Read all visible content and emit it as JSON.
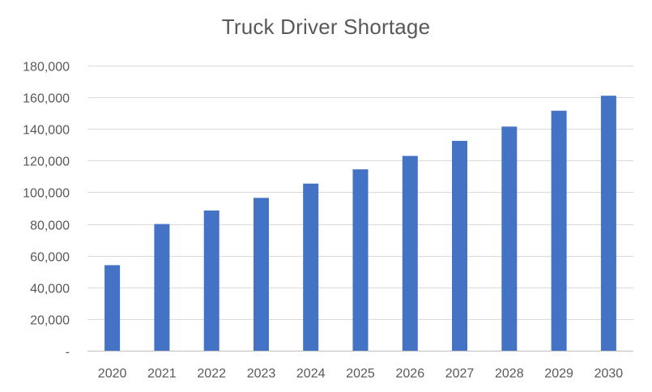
{
  "chart_data": {
    "type": "bar",
    "title": "Truck Driver Shortage",
    "xlabel": "",
    "ylabel": "",
    "categories": [
      "2020",
      "2021",
      "2022",
      "2023",
      "2024",
      "2025",
      "2026",
      "2027",
      "2028",
      "2029",
      "2030"
    ],
    "values": [
      54000,
      80000,
      88500,
      96500,
      105500,
      114500,
      123000,
      132500,
      141500,
      151500,
      161000
    ],
    "ylim": [
      0,
      180000
    ],
    "y_ticks": [
      0,
      20000,
      40000,
      60000,
      80000,
      100000,
      120000,
      140000,
      160000,
      180000
    ],
    "y_tick_labels": [
      "-",
      "20,000",
      "40,000",
      "60,000",
      "80,000",
      "100,000",
      "120,000",
      "140,000",
      "160,000",
      "180,000"
    ],
    "bar_color": "#4472c4",
    "grid": true,
    "legend": "none"
  }
}
